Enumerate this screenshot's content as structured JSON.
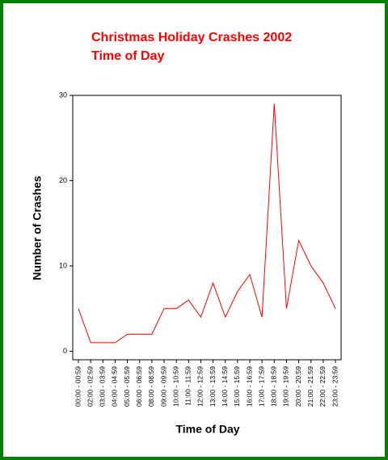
{
  "chart_data": {
    "type": "line",
    "title": "Christmas Holiday Crashes 2002",
    "subtitle": "Time of Day",
    "x_label": "Time of Day",
    "y_label": "Number of Crashes",
    "categories": [
      "00:00 - 00:59",
      "02:00 - 02:59",
      "03:00 - 03:59",
      "04:00 - 04:59",
      "05:00 - 05:59",
      "06:00 - 06:59",
      "08:00 - 08:59",
      "09:00 - 09:59",
      "10:00 - 10:59",
      "11:00 - 11:59",
      "12:00 - 12:59",
      "13:00 - 13:59",
      "14:00 - 14:59",
      "15:00 - 15:59",
      "16:00 - 16:59",
      "17:00 - 17:59",
      "18:00 - 18:59",
      "19:00 - 19:59",
      "20:00 - 20:59",
      "21:00 - 21:59",
      "22:00 - 22:59",
      "23:00 - 23:59"
    ],
    "series": [
      {
        "color": "#ff0000",
        "values": [
          5,
          1,
          1,
          1,
          2,
          2,
          2,
          5,
          5,
          6,
          4,
          8,
          4,
          7,
          9,
          4,
          29,
          5,
          13,
          10,
          8,
          5
        ]
      }
    ],
    "ylim": [
      -1,
      30
    ],
    "yticks": [
      0,
      10,
      20,
      30
    ]
  }
}
